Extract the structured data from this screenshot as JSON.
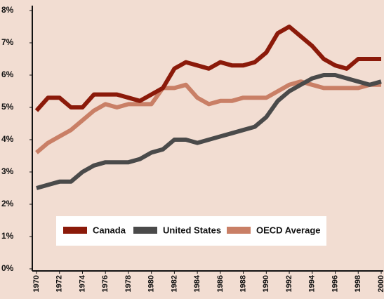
{
  "chart_data": {
    "type": "line",
    "x": [
      1970,
      1971,
      1972,
      1973,
      1974,
      1975,
      1976,
      1977,
      1978,
      1979,
      1980,
      1981,
      1982,
      1983,
      1984,
      1985,
      1986,
      1987,
      1988,
      1989,
      1990,
      1991,
      1992,
      1993,
      1994,
      1995,
      1996,
      1997,
      1998,
      1999,
      2000
    ],
    "series": [
      {
        "name": "Canada",
        "color": "#8b1a0a",
        "values": [
          4.9,
          5.3,
          5.3,
          5.0,
          5.0,
          5.4,
          5.4,
          5.4,
          5.3,
          5.2,
          5.4,
          5.6,
          6.2,
          6.4,
          6.3,
          6.2,
          6.4,
          6.3,
          6.3,
          6.4,
          6.7,
          7.3,
          7.5,
          7.2,
          6.9,
          6.5,
          6.3,
          6.2,
          6.5,
          6.5,
          6.5
        ]
      },
      {
        "name": "United States",
        "color": "#4a4a4a",
        "values": [
          2.5,
          2.6,
          2.7,
          2.7,
          3.0,
          3.2,
          3.3,
          3.3,
          3.3,
          3.4,
          3.6,
          3.7,
          4.0,
          4.0,
          3.9,
          4.0,
          4.1,
          4.2,
          4.3,
          4.4,
          4.7,
          5.2,
          5.5,
          5.7,
          5.9,
          6.0,
          6.0,
          5.9,
          5.8,
          5.7,
          5.8
        ]
      },
      {
        "name": "OECD Average",
        "color": "#c97f66",
        "values": [
          3.6,
          3.9,
          4.1,
          4.3,
          4.6,
          4.9,
          5.1,
          5.0,
          5.1,
          5.1,
          5.1,
          5.6,
          5.6,
          5.7,
          5.3,
          5.1,
          5.2,
          5.2,
          5.3,
          5.3,
          5.3,
          5.5,
          5.7,
          5.8,
          5.7,
          5.6,
          5.6,
          5.6,
          5.6,
          5.7,
          5.7
        ]
      }
    ],
    "xlim": [
      1970,
      2000
    ],
    "xticks": [
      1970,
      1972,
      1974,
      1976,
      1978,
      1980,
      1982,
      1984,
      1986,
      1988,
      1990,
      1992,
      1994,
      1996,
      1998,
      2000
    ],
    "ylim": [
      0,
      8
    ],
    "yticks": [
      {
        "value": 0,
        "label": "0%"
      },
      {
        "value": 1,
        "label": "1%"
      },
      {
        "value": 2,
        "label": "2%"
      },
      {
        "value": 3,
        "label": "3%"
      },
      {
        "value": 4,
        "label": "4%"
      },
      {
        "value": 5,
        "label": "5%"
      },
      {
        "value": 6,
        "label": "6%"
      },
      {
        "value": 7,
        "label": "7%"
      },
      {
        "value": 8,
        "label": "8%"
      }
    ],
    "grid": false
  }
}
